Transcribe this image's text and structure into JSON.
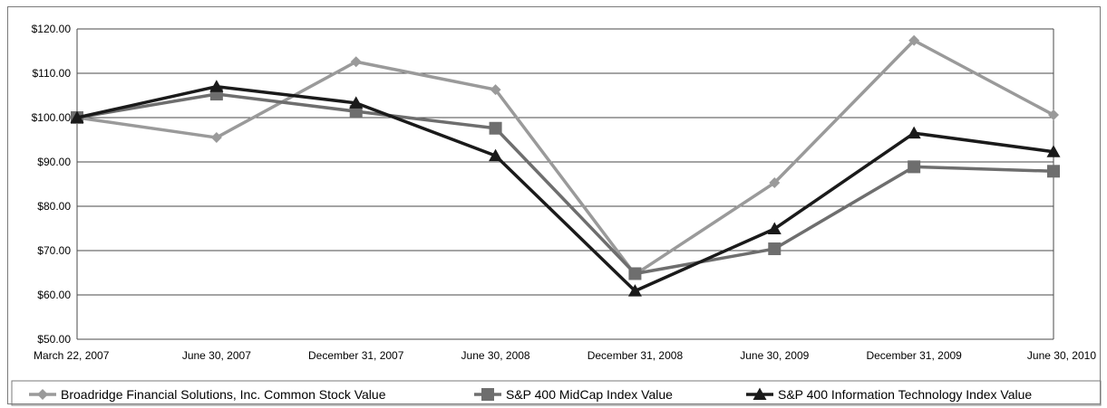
{
  "chart_data": {
    "type": "line",
    "title": "",
    "xlabel": "",
    "ylabel": "",
    "x": [
      "March 22, 2007",
      "June 30, 2007",
      "December 31, 2007",
      "June 30, 2008",
      "December 31, 2008",
      "June 30, 2009",
      "December 31, 2009",
      "June 30, 2010"
    ],
    "ylim": [
      50,
      120
    ],
    "yticks": [
      "$50.00",
      "$60.00",
      "$70.00",
      "$80.00",
      "$90.00",
      "$100.00",
      "$110.00",
      "$120.00"
    ],
    "grid": true,
    "legend_position": "bottom",
    "series": [
      {
        "name": "Broadridge Financial Solutions, Inc. Common Stock Value",
        "marker": "diamond",
        "color": "#9a9a9a",
        "values": [
          100.0,
          95.5,
          112.6,
          106.3,
          64.6,
          85.3,
          117.4,
          100.6
        ]
      },
      {
        "name": "S&P 400 MidCap Index Value",
        "marker": "square",
        "color": "#6e6e6e",
        "values": [
          100.0,
          105.3,
          101.4,
          97.6,
          64.8,
          70.4,
          88.9,
          87.9
        ]
      },
      {
        "name": "S&P 400 Information Technology Index Value",
        "marker": "triangle",
        "color": "#1a1a1a",
        "values": [
          100.0,
          107.0,
          103.3,
          91.4,
          60.9,
          74.9,
          96.5,
          92.3
        ]
      }
    ]
  }
}
